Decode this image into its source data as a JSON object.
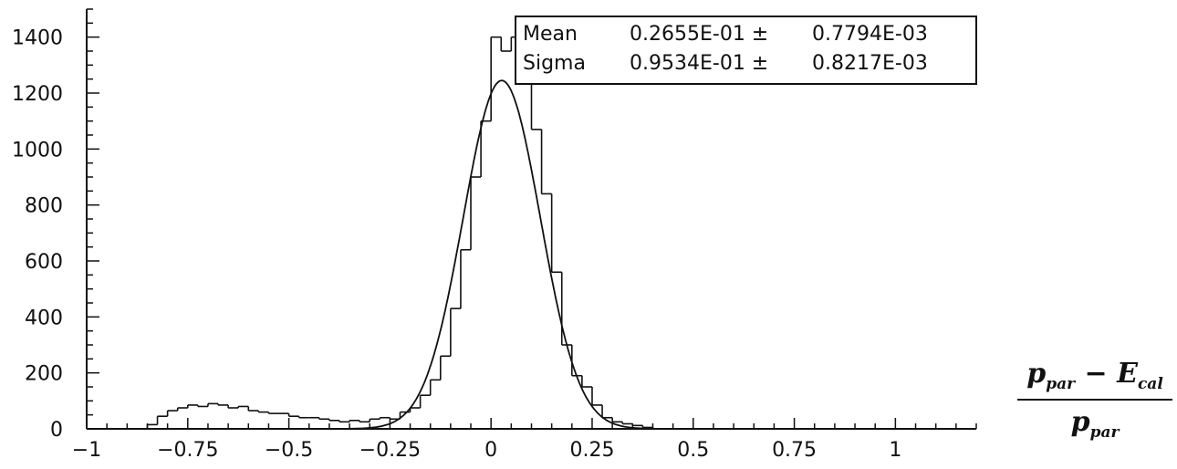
{
  "chart_data": {
    "type": "histogram",
    "xlim": [
      -1,
      1.2
    ],
    "ylim": [
      0,
      1500
    ],
    "x_ticks": [
      -1,
      -0.75,
      -0.5,
      -0.25,
      0,
      0.25,
      0.5,
      0.75,
      1
    ],
    "x_tick_labels": [
      "-1",
      "-0.75",
      "-0.5",
      "-0.25",
      "0",
      "0.25",
      "0.5",
      "0.75",
      "1"
    ],
    "y_ticks": [
      0,
      200,
      400,
      600,
      800,
      1000,
      1200,
      1400
    ],
    "y_tick_labels": [
      "0",
      "200",
      "400",
      "600",
      "800",
      "1000",
      "1200",
      "1400"
    ],
    "bin_width": 0.025,
    "bins": [
      {
        "x": -0.85,
        "y": 15
      },
      {
        "x": -0.825,
        "y": 45
      },
      {
        "x": -0.8,
        "y": 65
      },
      {
        "x": -0.775,
        "y": 75
      },
      {
        "x": -0.75,
        "y": 85
      },
      {
        "x": -0.725,
        "y": 80
      },
      {
        "x": -0.7,
        "y": 90
      },
      {
        "x": -0.675,
        "y": 85
      },
      {
        "x": -0.65,
        "y": 75
      },
      {
        "x": -0.625,
        "y": 80
      },
      {
        "x": -0.6,
        "y": 65
      },
      {
        "x": -0.575,
        "y": 60
      },
      {
        "x": -0.55,
        "y": 55
      },
      {
        "x": -0.525,
        "y": 55
      },
      {
        "x": -0.5,
        "y": 45
      },
      {
        "x": -0.475,
        "y": 40
      },
      {
        "x": -0.45,
        "y": 40
      },
      {
        "x": -0.425,
        "y": 35
      },
      {
        "x": -0.4,
        "y": 30
      },
      {
        "x": -0.375,
        "y": 25
      },
      {
        "x": -0.35,
        "y": 30
      },
      {
        "x": -0.325,
        "y": 25
      },
      {
        "x": -0.3,
        "y": 35
      },
      {
        "x": -0.275,
        "y": 40
      },
      {
        "x": -0.25,
        "y": 35
      },
      {
        "x": -0.225,
        "y": 60
      },
      {
        "x": -0.2,
        "y": 75
      },
      {
        "x": -0.175,
        "y": 120
      },
      {
        "x": -0.15,
        "y": 175
      },
      {
        "x": -0.125,
        "y": 260
      },
      {
        "x": -0.1,
        "y": 430
      },
      {
        "x": -0.075,
        "y": 640
      },
      {
        "x": -0.05,
        "y": 900
      },
      {
        "x": -0.025,
        "y": 1100
      },
      {
        "x": 0.0,
        "y": 1400
      },
      {
        "x": 0.025,
        "y": 1350
      },
      {
        "x": 0.05,
        "y": 1400
      },
      {
        "x": 0.075,
        "y": 1300
      },
      {
        "x": 0.1,
        "y": 1070
      },
      {
        "x": 0.125,
        "y": 840
      },
      {
        "x": 0.15,
        "y": 560
      },
      {
        "x": 0.175,
        "y": 300
      },
      {
        "x": 0.2,
        "y": 190
      },
      {
        "x": 0.225,
        "y": 150
      },
      {
        "x": 0.25,
        "y": 85
      },
      {
        "x": 0.275,
        "y": 40
      },
      {
        "x": 0.3,
        "y": 25
      },
      {
        "x": 0.325,
        "y": 18
      },
      {
        "x": 0.35,
        "y": 12
      },
      {
        "x": 0.375,
        "y": 5
      }
    ],
    "fit": {
      "type": "gaussian",
      "mean": 0.02655,
      "sigma": 0.09534,
      "amplitude": 1245
    },
    "stats": [
      {
        "label": "Mean",
        "value": "0.2655E-01 ±",
        "error": "0.7794E-03"
      },
      {
        "label": "Sigma",
        "value": "0.9534E-01 ±",
        "error": "0.8217E-03"
      }
    ],
    "xlabel": {
      "numerator_main": "p",
      "numerator_sub": "par",
      "minus": " − ",
      "numerator_main2": "E",
      "numerator_sub2": "cal",
      "denominator_main": "p",
      "denominator_sub": "par"
    },
    "grid": false,
    "line_color": "#111111"
  }
}
